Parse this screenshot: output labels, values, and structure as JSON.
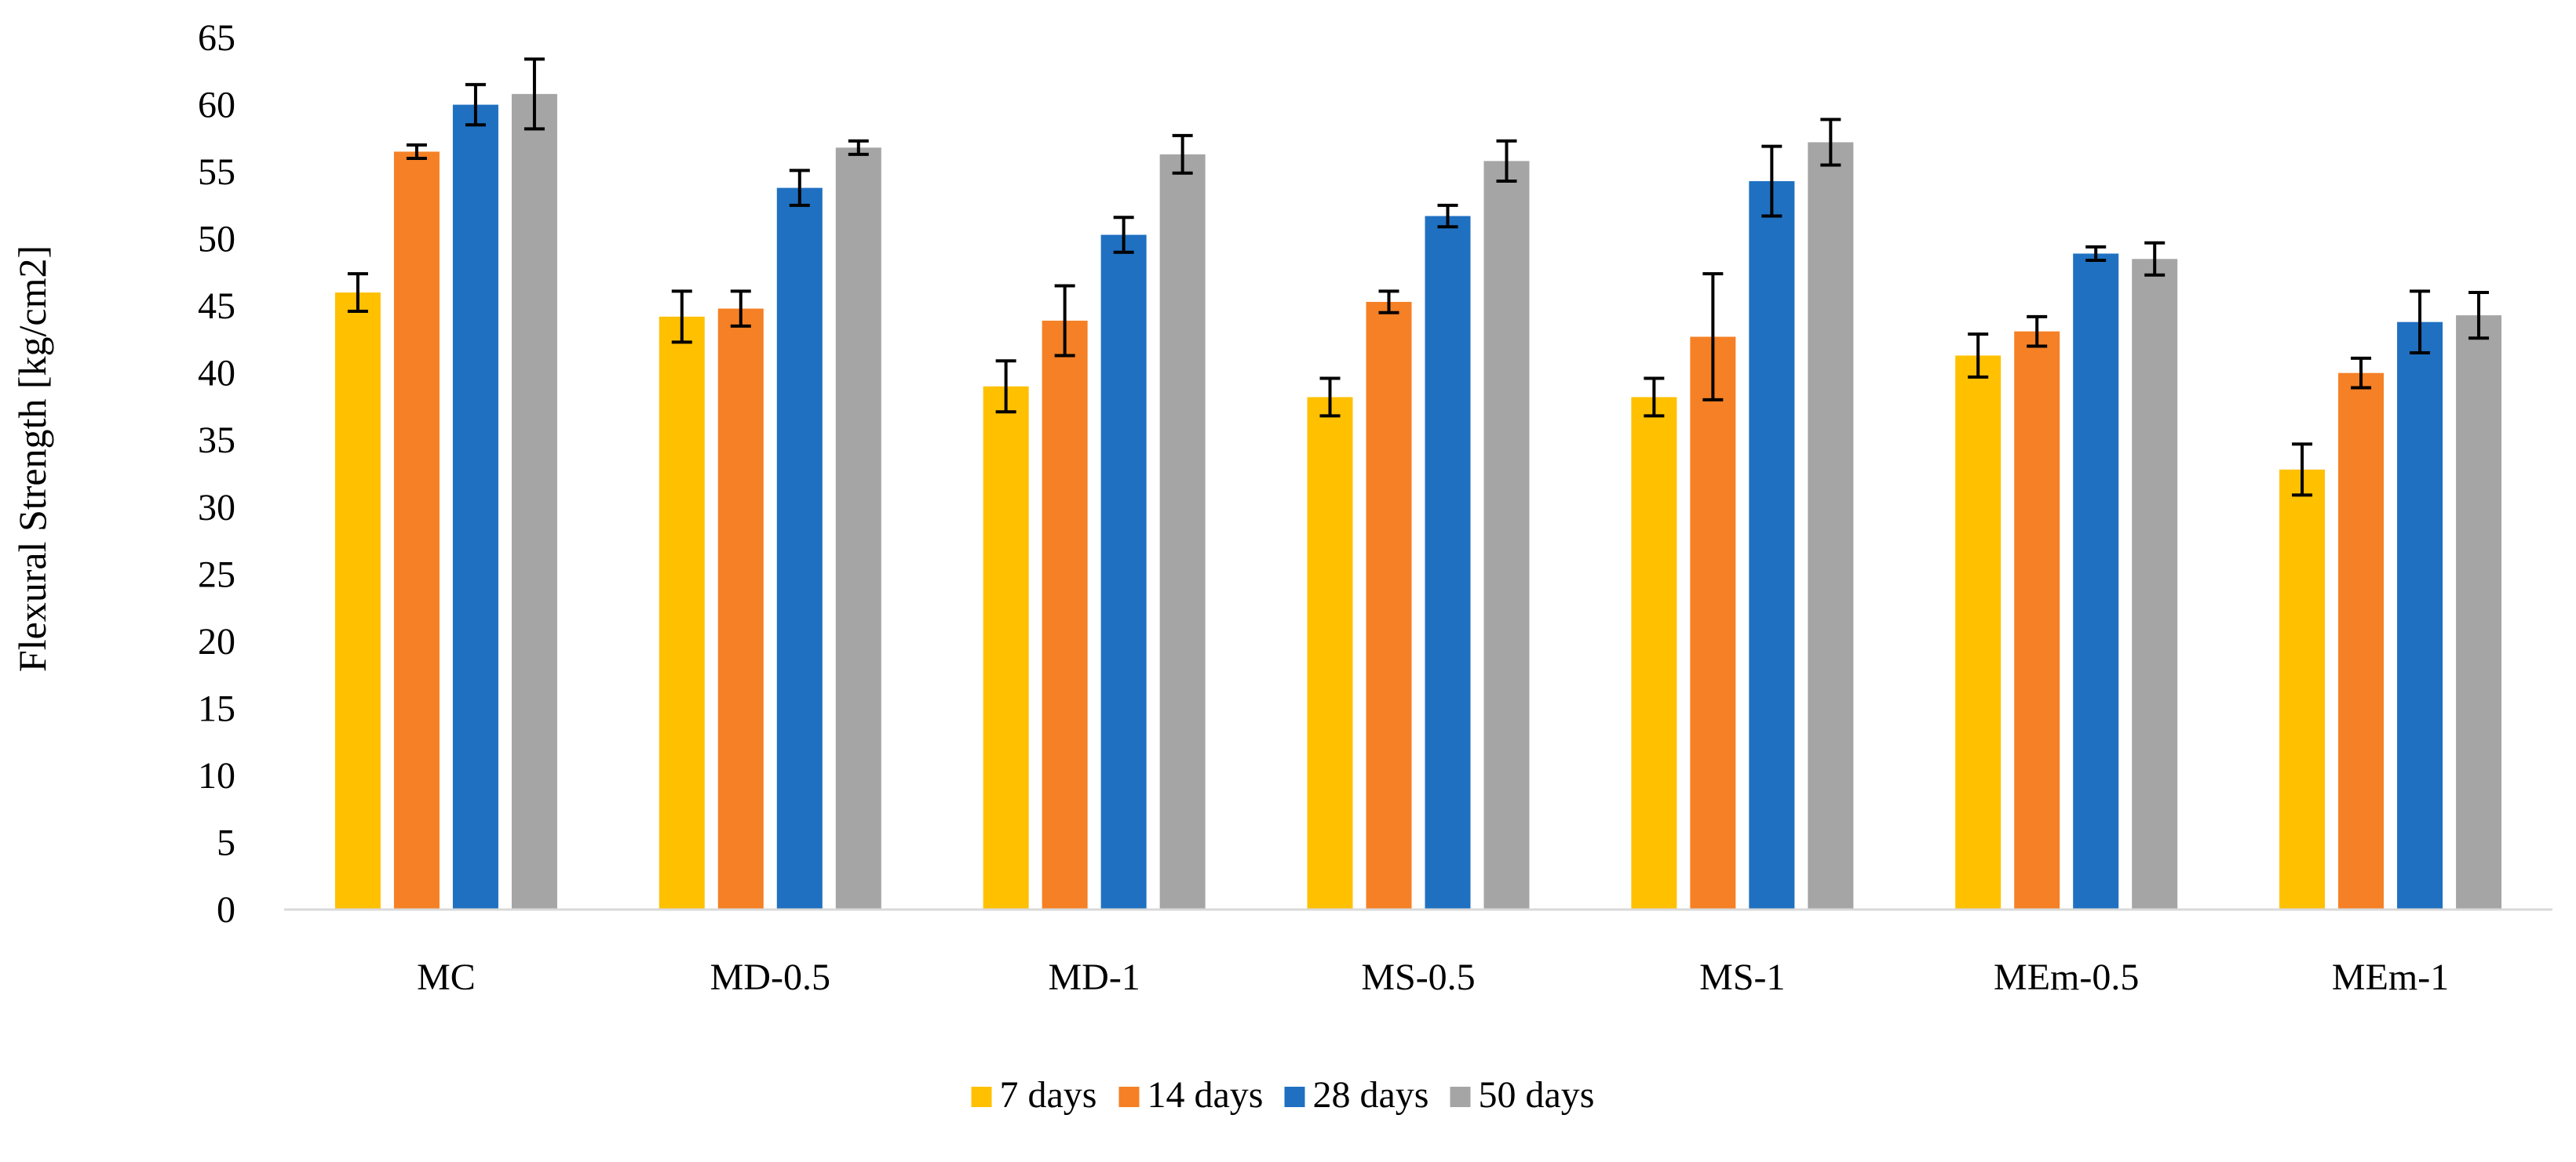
{
  "chart_data": {
    "type": "bar",
    "title": "",
    "xlabel": "",
    "ylabel": "Flexural Strength [kg/cm2]",
    "ylim": [
      0,
      65
    ],
    "yticks": [
      0,
      5,
      10,
      15,
      20,
      25,
      30,
      35,
      40,
      45,
      50,
      55,
      60,
      65
    ],
    "grid": false,
    "legend_position": "bottom",
    "error_bars": true,
    "categories": [
      "MC",
      "MD-0.5",
      "MD-1",
      "MS-0.5",
      "MS-1",
      "MEm-0.5",
      "MEm-1"
    ],
    "series": [
      {
        "name": "7 days",
        "color": "#FFC000",
        "values": [
          46.0,
          44.2,
          39.0,
          38.2,
          38.2,
          41.3,
          32.8
        ],
        "errors": [
          1.4,
          1.9,
          1.9,
          1.4,
          1.4,
          1.6,
          1.9
        ]
      },
      {
        "name": "14 days",
        "color": "#F58025",
        "values": [
          56.5,
          44.8,
          43.9,
          45.3,
          42.7,
          43.1,
          40.0
        ],
        "errors": [
          0.5,
          1.3,
          2.6,
          0.8,
          4.7,
          1.1,
          1.1
        ]
      },
      {
        "name": "28 days",
        "color": "#1F70C1",
        "values": [
          60.0,
          53.8,
          50.3,
          51.7,
          54.3,
          48.9,
          43.8
        ],
        "errors": [
          1.5,
          1.3,
          1.3,
          0.8,
          2.6,
          0.5,
          2.3
        ]
      },
      {
        "name": "50 days",
        "color": "#A5A5A5",
        "values": [
          60.8,
          56.8,
          56.3,
          55.8,
          57.2,
          48.5,
          44.3
        ],
        "errors": [
          2.6,
          0.5,
          1.4,
          1.5,
          1.7,
          1.2,
          1.7
        ]
      }
    ]
  }
}
